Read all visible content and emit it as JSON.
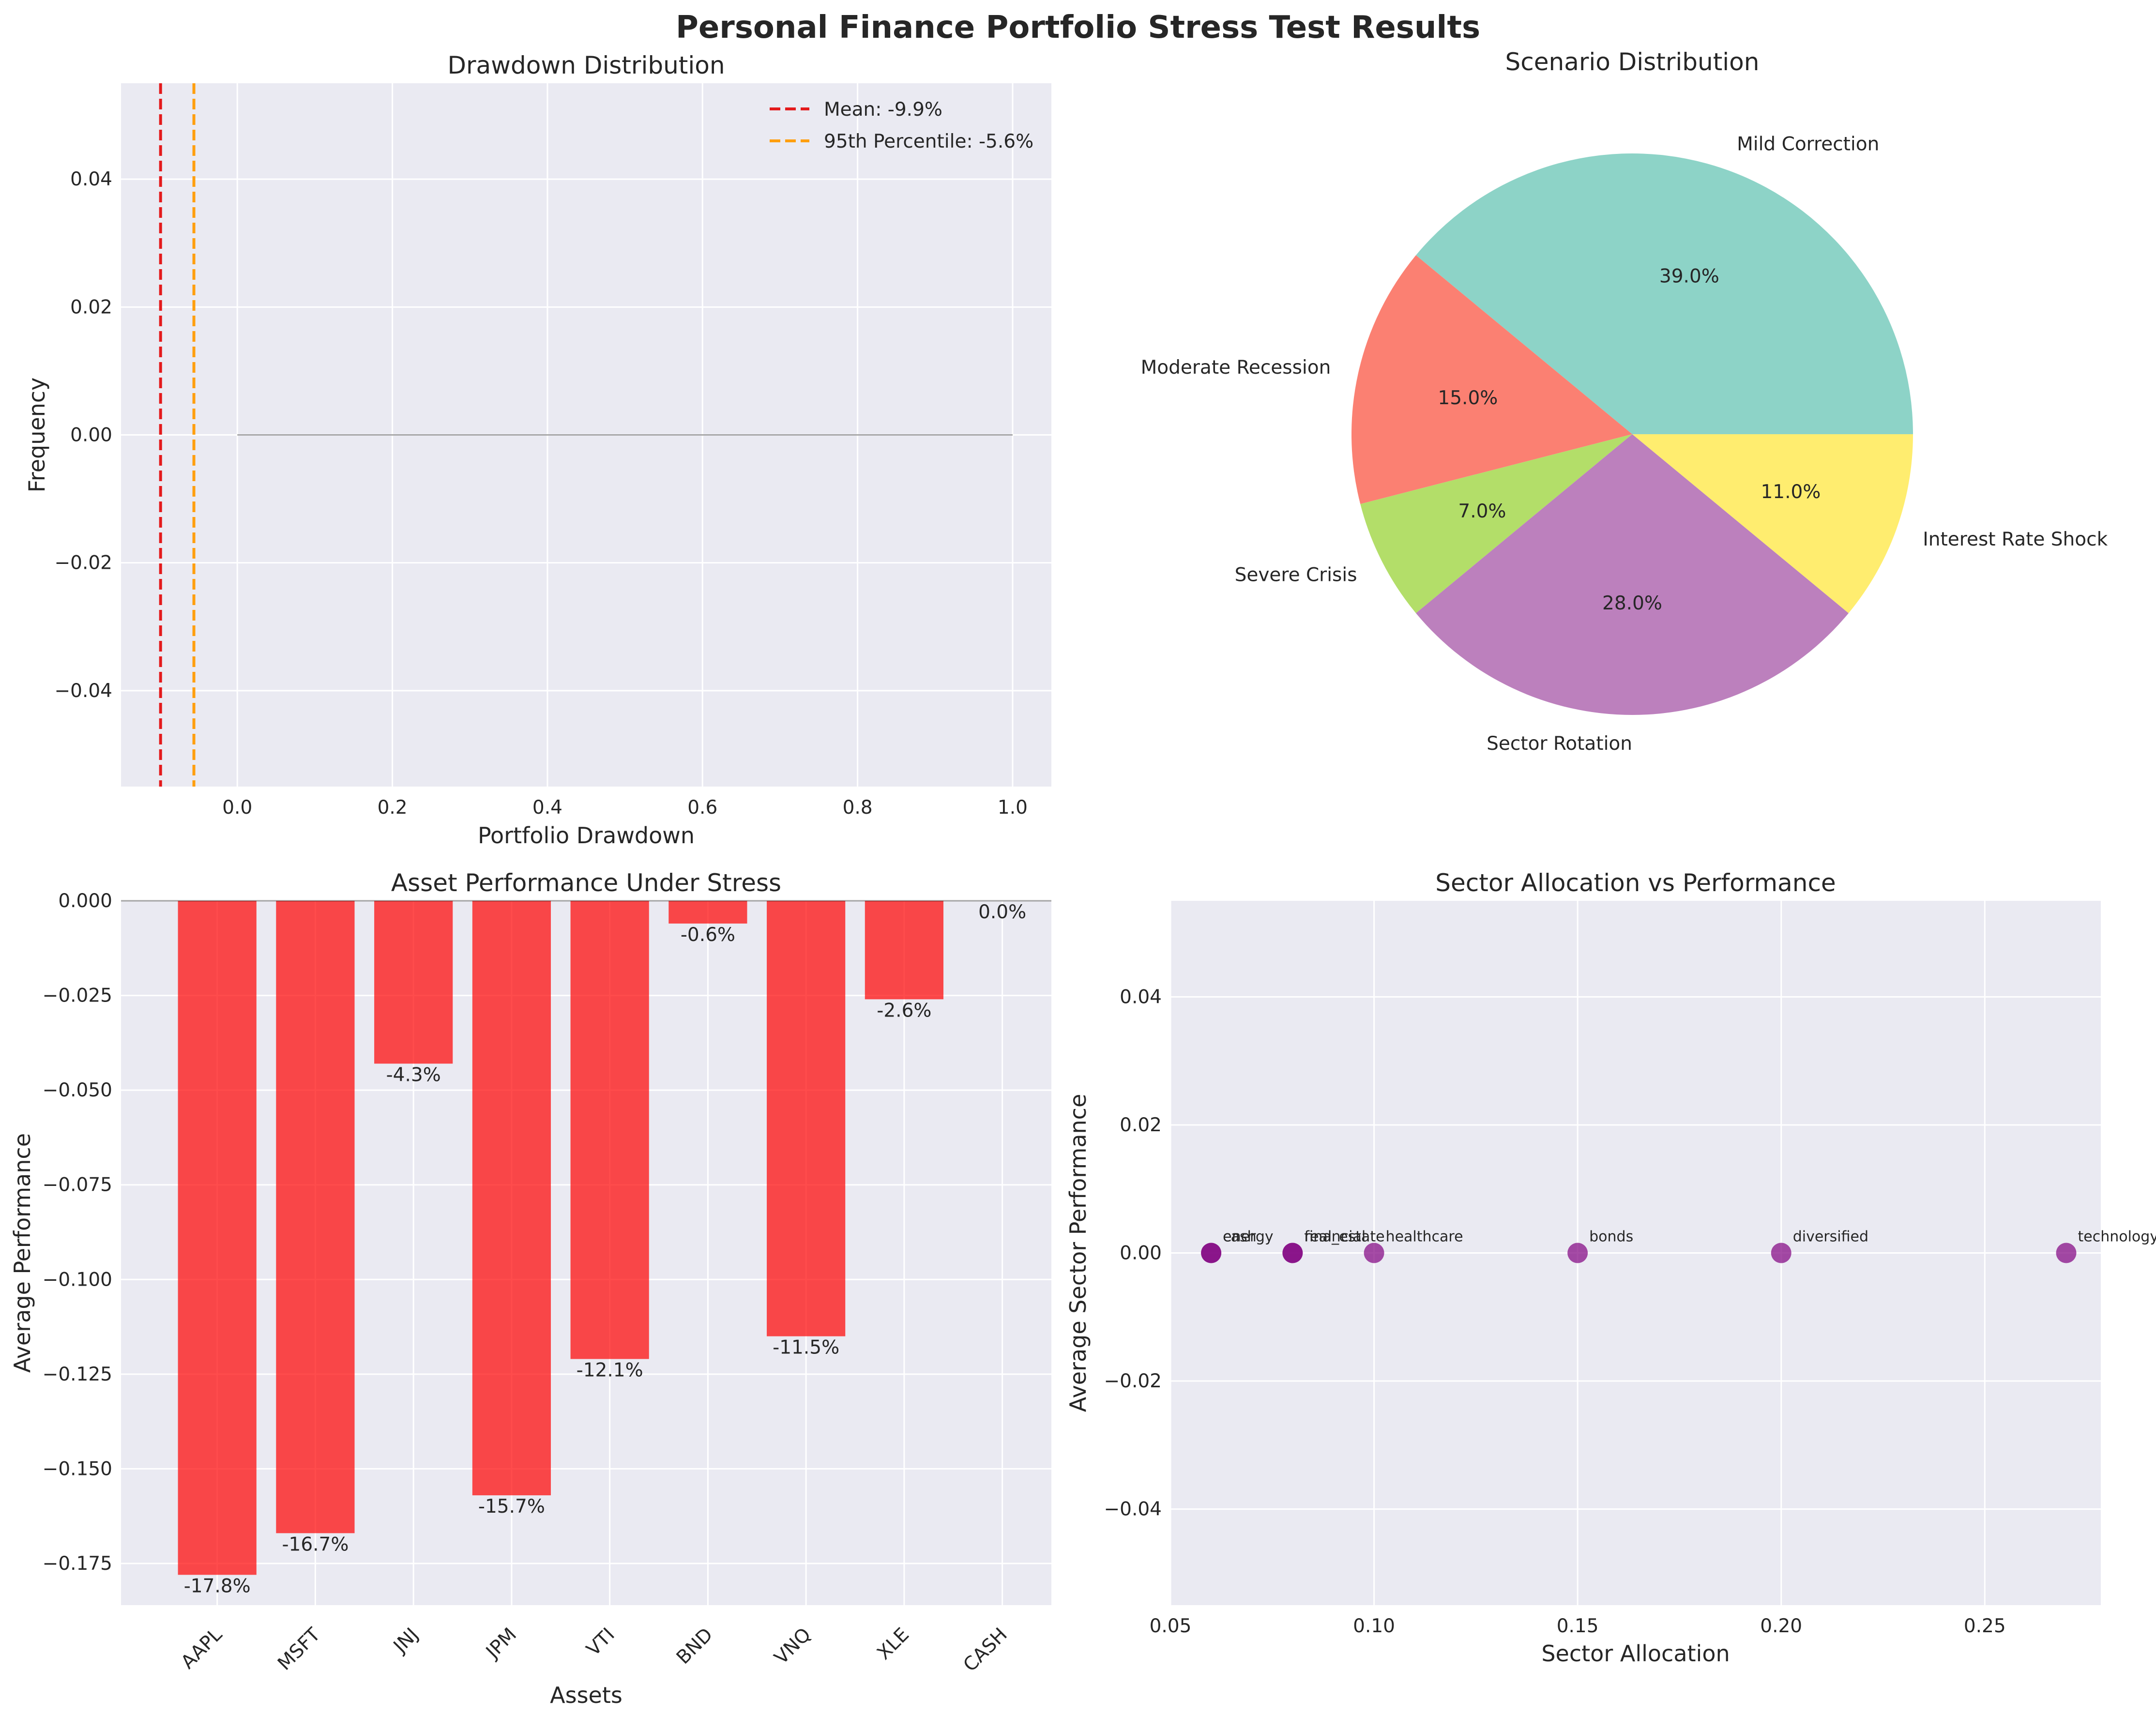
{
  "suptitle": "Personal Finance Portfolio Stress Test Results",
  "chart_data": [
    {
      "type": "histogram",
      "title": "Drawdown Distribution",
      "xlabel": "Portfolio Drawdown",
      "ylabel": "Frequency",
      "xlim": [
        -0.15,
        1.05
      ],
      "ylim": [
        -0.055,
        0.055
      ],
      "x_ticks": [
        0.0,
        0.2,
        0.4,
        0.6,
        0.8,
        1.0
      ],
      "x_tick_labels": [
        "0.0",
        "0.2",
        "0.4",
        "0.6",
        "0.8",
        "1.0"
      ],
      "y_ticks": [
        0.04,
        0.02,
        0.0,
        -0.02,
        -0.04
      ],
      "y_tick_labels": [
        "0.04",
        "0.02",
        "0.00",
        "−0.02",
        "−0.04"
      ],
      "hist_range": [
        0.0,
        1.0
      ],
      "hist_color": "#808080",
      "vlines": [
        {
          "x": -0.099,
          "label": "Mean: -9.9%",
          "color": "#e31a1c",
          "style": "dashed"
        },
        {
          "x": -0.056,
          "label": "95th Percentile: -5.6%",
          "color": "#ff9f0f",
          "style": "dashed"
        }
      ],
      "legend_position": "top-right",
      "grid": true
    },
    {
      "type": "pie",
      "title": "Scenario Distribution",
      "slices": [
        {
          "label": "Mild Correction",
          "value": 39.0,
          "pct_label": "39.0%",
          "color": "#8dd3c7"
        },
        {
          "label": "Moderate Recession",
          "value": 15.0,
          "pct_label": "15.0%",
          "color": "#fb8072"
        },
        {
          "label": "Severe Crisis",
          "value": 7.0,
          "pct_label": "7.0%",
          "color": "#b3de69"
        },
        {
          "label": "Sector Rotation",
          "value": 28.0,
          "pct_label": "28.0%",
          "color": "#bc80bd"
        },
        {
          "label": "Interest Rate Shock",
          "value": 11.0,
          "pct_label": "11.0%",
          "color": "#ffed6f"
        }
      ]
    },
    {
      "type": "bar",
      "title": "Asset Performance Under Stress",
      "xlabel": "Assets",
      "ylabel": "Average Performance",
      "categories": [
        "AAPL",
        "MSFT",
        "JNJ",
        "JPM",
        "VTI",
        "BND",
        "VNQ",
        "XLE",
        "CASH"
      ],
      "values": [
        -0.178,
        -0.167,
        -0.043,
        -0.157,
        -0.121,
        -0.006,
        -0.115,
        -0.026,
        0.0
      ],
      "value_labels": [
        "-17.8%",
        "-16.7%",
        "-4.3%",
        "-15.7%",
        "-12.1%",
        "-0.6%",
        "-11.5%",
        "-2.6%",
        "0.0%"
      ],
      "bar_color": "#ff0000",
      "ylim": [
        -0.186,
        0.0
      ],
      "y_ticks": [
        0.0,
        -0.025,
        -0.05,
        -0.075,
        -0.1,
        -0.125,
        -0.15,
        -0.175
      ],
      "y_tick_labels": [
        "0.000",
        "−0.025",
        "−0.050",
        "−0.075",
        "−0.100",
        "−0.125",
        "−0.150",
        "−0.175"
      ],
      "grid": true
    },
    {
      "type": "scatter",
      "title": "Sector Allocation vs Performance",
      "xlabel": "Sector Allocation",
      "ylabel": "Average Sector Performance",
      "xlim": [
        0.05,
        0.28
      ],
      "ylim": [
        -0.055,
        0.055
      ],
      "x_ticks": [
        0.05,
        0.1,
        0.15,
        0.2,
        0.25
      ],
      "x_tick_labels": [
        "0.05",
        "0.10",
        "0.15",
        "0.20",
        "0.25"
      ],
      "y_ticks": [
        0.04,
        0.02,
        0.0,
        -0.02,
        -0.04
      ],
      "y_tick_labels": [
        "0.04",
        "0.02",
        "0.00",
        "−0.02",
        "−0.04"
      ],
      "point_color": "#800080",
      "points": [
        {
          "x": 0.06,
          "y": 0.0,
          "label": "cash"
        },
        {
          "x": 0.06,
          "y": 0.0,
          "label": "energy"
        },
        {
          "x": 0.08,
          "y": 0.0,
          "label": "financial"
        },
        {
          "x": 0.08,
          "y": 0.0,
          "label": "real_estate"
        },
        {
          "x": 0.1,
          "y": 0.0,
          "label": "healthcare"
        },
        {
          "x": 0.15,
          "y": 0.0,
          "label": "bonds"
        },
        {
          "x": 0.2,
          "y": 0.0,
          "label": "diversified"
        },
        {
          "x": 0.27,
          "y": 0.0,
          "label": "technology"
        }
      ],
      "grid": true
    }
  ]
}
